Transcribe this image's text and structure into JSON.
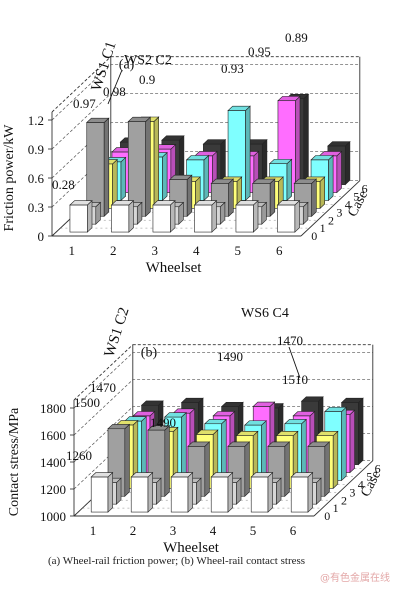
{
  "caption": "(a)  Wheel-rail  friction  power;  (b)  Wheel-rail  contact stress",
  "watermark": "@有色金属在线",
  "colors": {
    "case0": "#ffffff",
    "case1": "#d6d6d6",
    "case2": "#a0a0a0",
    "case3": "#ffff7a",
    "case4": "#7fffff",
    "case5": "#ff6dff",
    "case6": "#3a3a3a"
  },
  "chart_data": [
    {
      "type": "bar",
      "panel_label": "(a)",
      "xlabel": "Wheelset",
      "ylabel": "Friction power/kW",
      "zlabel": "Case",
      "categories": [
        "1",
        "2",
        "3",
        "4",
        "5",
        "6"
      ],
      "yticks": [
        "0",
        "0.3",
        "0.6",
        "0.9",
        "1.2"
      ],
      "ylim": [
        0,
        1.2
      ],
      "series": [
        {
          "name": "0",
          "values": [
            0.28,
            0.28,
            0.28,
            0.28,
            0.28,
            0.28
          ]
        },
        {
          "name": "1",
          "values": [
            0.18,
            0.18,
            0.18,
            0.18,
            0.18,
            0.18
          ]
        },
        {
          "name": "2",
          "values": [
            0.97,
            0.98,
            0.38,
            0.34,
            0.34,
            0.34
          ]
        },
        {
          "name": "3",
          "values": [
            0.46,
            0.9,
            0.28,
            0.28,
            0.28,
            0.28
          ]
        },
        {
          "name": "4",
          "values": [
            0.4,
            0.45,
            0.42,
            0.93,
            0.38,
            0.42
          ]
        },
        {
          "name": "5",
          "values": [
            0.42,
            0.45,
            0.38,
            0.38,
            0.95,
            0.38
          ]
        },
        {
          "name": "6",
          "values": [
            0.44,
            0.46,
            0.42,
            0.42,
            0.89,
            0.4
          ]
        }
      ],
      "annotations": {
        "ws1": "WS1 C1",
        "ws2": "WS2 C2",
        "v97": "0.97",
        "v98": "0.98",
        "v90": "0.9",
        "v93": "0.93",
        "v95": "0.95",
        "v89": "0.89",
        "v28": "0.28"
      }
    },
    {
      "type": "bar",
      "panel_label": "(b)",
      "xlabel": "Wheelset",
      "ylabel": "Contact stress/MPa",
      "zlabel": "Case",
      "categories": [
        "1",
        "2",
        "3",
        "4",
        "5",
        "6"
      ],
      "yticks": [
        "1000",
        "1200",
        "1400",
        "1600",
        "1800"
      ],
      "ylim": [
        1000,
        1800
      ],
      "series": [
        {
          "name": "0",
          "values": [
            1260,
            1260,
            1260,
            1260,
            1260,
            1260
          ]
        },
        {
          "name": "1",
          "values": [
            1160,
            1160,
            1160,
            1160,
            1160,
            1160
          ]
        },
        {
          "name": "2",
          "values": [
            1500,
            1490,
            1370,
            1370,
            1370,
            1370
          ]
        },
        {
          "name": "3",
          "values": [
            1470,
            1420,
            1400,
            1390,
            1390,
            1390
          ]
        },
        {
          "name": "4",
          "values": [
            1440,
            1470,
            1420,
            1410,
            1420,
            1510
          ]
        },
        {
          "name": "5",
          "values": [
            1420,
            1440,
            1420,
            1490,
            1420,
            1430
          ]
        },
        {
          "name": "6",
          "values": [
            1440,
            1460,
            1430,
            1420,
            1470,
            1460
          ]
        }
      ],
      "annotations": {
        "ws1": "WS1 C2",
        "ws6": "WS6 C4",
        "v1500": "1500",
        "v1470a": "1470",
        "v1490a": "1490",
        "v1260": "1260",
        "v1490b": "1490",
        "v1470b": "1470",
        "v1510": "1510"
      }
    }
  ]
}
